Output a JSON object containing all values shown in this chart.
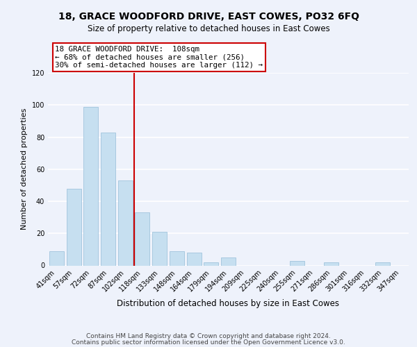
{
  "title": "18, GRACE WOODFORD DRIVE, EAST COWES, PO32 6FQ",
  "subtitle": "Size of property relative to detached houses in East Cowes",
  "xlabel": "Distribution of detached houses by size in East Cowes",
  "ylabel": "Number of detached properties",
  "footer_line1": "Contains HM Land Registry data © Crown copyright and database right 2024.",
  "footer_line2": "Contains public sector information licensed under the Open Government Licence v3.0.",
  "bin_labels": [
    "41sqm",
    "57sqm",
    "72sqm",
    "87sqm",
    "102sqm",
    "118sqm",
    "133sqm",
    "148sqm",
    "164sqm",
    "179sqm",
    "194sqm",
    "209sqm",
    "225sqm",
    "240sqm",
    "255sqm",
    "271sqm",
    "286sqm",
    "301sqm",
    "316sqm",
    "332sqm",
    "347sqm"
  ],
  "bar_heights": [
    9,
    48,
    99,
    83,
    53,
    33,
    21,
    9,
    8,
    2,
    5,
    0,
    0,
    0,
    3,
    0,
    2,
    0,
    0,
    2,
    0
  ],
  "bar_color": "#c6dff0",
  "bar_edge_color": "#a0c4dc",
  "reference_line_color": "#cc0000",
  "reference_line_index": 4.5,
  "annotation_line1": "18 GRACE WOODFORD DRIVE:  108sqm",
  "annotation_line2": "← 68% of detached houses are smaller (256)",
  "annotation_line3": "30% of semi-detached houses are larger (112) →",
  "annotation_box_edge_color": "#cc0000",
  "ylim": [
    0,
    120
  ],
  "yticks": [
    0,
    20,
    40,
    60,
    80,
    100,
    120
  ],
  "background_color": "#eef2fb",
  "plot_bg_color": "#eef2fb",
  "grid_color": "#ffffff",
  "title_fontsize": 10,
  "subtitle_fontsize": 8.5,
  "ylabel_fontsize": 8,
  "xlabel_fontsize": 8.5,
  "tick_fontsize": 7,
  "footer_fontsize": 6.5
}
